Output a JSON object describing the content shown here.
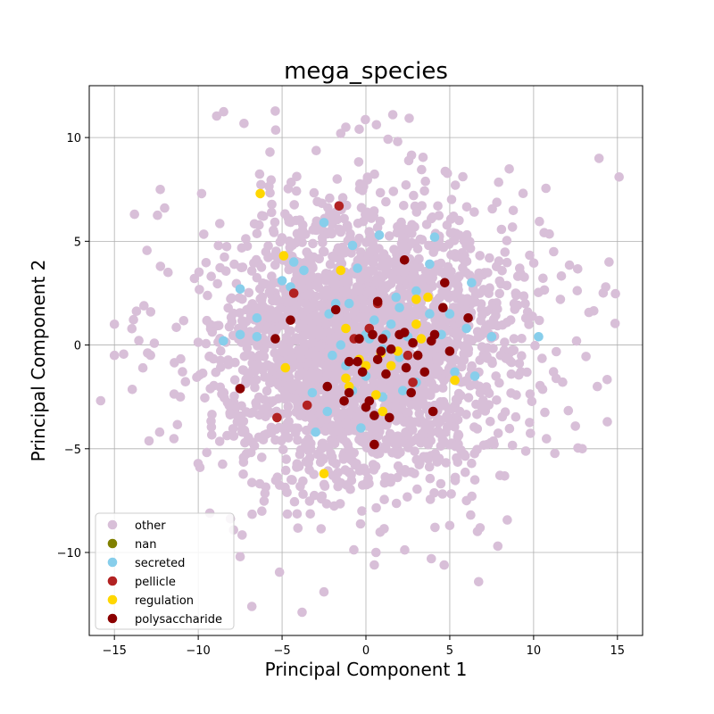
{
  "chart_data": {
    "type": "scatter",
    "title": "mega_species",
    "xlabel": "Principal Component 1",
    "ylabel": "Principal Component 2",
    "xlim": [
      -16.5,
      16.5
    ],
    "ylim": [
      -14,
      12.5
    ],
    "xticks": [
      -15,
      -10,
      -5,
      0,
      5,
      10,
      15
    ],
    "yticks": [
      -10,
      -5,
      0,
      5,
      10
    ],
    "grid": true,
    "legend_position": "lower-left",
    "series": [
      {
        "name": "other",
        "color": "#d8bfd8",
        "cloud": {
          "count": 2600,
          "center": [
            0,
            0
          ],
          "std": [
            4.4,
            3.4
          ],
          "seed": 7
        },
        "values": [
          [
            -15.0,
            1.0
          ],
          [
            -15.0,
            -0.5
          ],
          [
            -13.8,
            6.3
          ],
          [
            -12.3,
            -4.2
          ],
          [
            -12.0,
            6.6
          ],
          [
            -11.8,
            3.5
          ],
          [
            -9.9,
            -5.9
          ],
          [
            -7.5,
            -10.2
          ],
          [
            -6.8,
            -12.6
          ],
          [
            -2.5,
            -11.9
          ],
          [
            0.6,
            -10.0
          ],
          [
            0.5,
            -10.6
          ],
          [
            3.9,
            -10.3
          ],
          [
            1.6,
            11.1
          ],
          [
            -1.2,
            10.5
          ],
          [
            -0.4,
            10.4
          ],
          [
            -1.5,
            10.2
          ],
          [
            13.9,
            9.0
          ],
          [
            15.1,
            8.1
          ],
          [
            14.5,
            4.0
          ],
          [
            14.3,
            2.8
          ],
          [
            14.4,
            -3.7
          ],
          [
            12.9,
            -5.0
          ],
          [
            13.8,
            -2.0
          ],
          [
            11.6,
            2.2
          ],
          [
            11.2,
            4.5
          ],
          [
            5.0,
            -8.7
          ],
          [
            6.5,
            -6.5
          ],
          [
            6.0,
            -7.5
          ],
          [
            -9.8,
            7.3
          ]
        ]
      },
      {
        "name": "nan",
        "color": "#808000",
        "values": []
      },
      {
        "name": "secreted",
        "color": "#87ceeb",
        "values": [
          [
            -2.5,
            5.9
          ],
          [
            -5.0,
            3.1
          ],
          [
            -4.5,
            2.8
          ],
          [
            -3.7,
            3.6
          ],
          [
            -2.2,
            1.5
          ],
          [
            -1.0,
            2.0
          ],
          [
            0.5,
            1.2
          ],
          [
            1.2,
            0.5
          ],
          [
            2.0,
            1.8
          ],
          [
            3.0,
            2.6
          ],
          [
            3.8,
            3.9
          ],
          [
            4.1,
            5.2
          ],
          [
            0.8,
            5.3
          ],
          [
            -0.8,
            4.8
          ],
          [
            1.5,
            1.0
          ],
          [
            -1.5,
            0.0
          ],
          [
            -2.0,
            -0.5
          ],
          [
            0.0,
            -1.5
          ],
          [
            1.0,
            -2.5
          ],
          [
            2.0,
            -0.6
          ],
          [
            3.0,
            -1.8
          ],
          [
            4.5,
            0.5
          ],
          [
            5.0,
            1.5
          ],
          [
            6.0,
            0.8
          ],
          [
            6.5,
            -1.5
          ],
          [
            7.5,
            0.4
          ],
          [
            10.3,
            0.4
          ],
          [
            -7.5,
            2.7
          ],
          [
            -8.5,
            0.2
          ],
          [
            -6.5,
            1.3
          ],
          [
            -3.0,
            -4.2
          ],
          [
            -2.3,
            -3.2
          ],
          [
            -0.3,
            -4.0
          ],
          [
            1.0,
            -0.2
          ],
          [
            2.5,
            0.4
          ],
          [
            -1.2,
            -1.0
          ],
          [
            0.2,
            0.3
          ],
          [
            -0.5,
            3.7
          ],
          [
            6.3,
            3.0
          ],
          [
            5.3,
            -1.3
          ],
          [
            -3.2,
            -2.3
          ],
          [
            -4.3,
            4.0
          ],
          [
            -6.5,
            0.4
          ],
          [
            -7.5,
            0.5
          ],
          [
            3.8,
            1.5
          ],
          [
            1.8,
            2.3
          ],
          [
            -1.8,
            2.0
          ],
          [
            0.0,
            0.5
          ],
          [
            2.2,
            -2.2
          ],
          [
            -0.8,
            -2.2
          ]
        ]
      },
      {
        "name": "pellicle",
        "color": "#b22222",
        "values": [
          [
            -1.6,
            6.7
          ],
          [
            -4.3,
            2.5
          ],
          [
            -3.5,
            -2.9
          ],
          [
            -5.3,
            -3.5
          ],
          [
            0.7,
            2.0
          ],
          [
            0.5,
            -4.8
          ],
          [
            2.8,
            -1.8
          ],
          [
            0.2,
            0.8
          ],
          [
            -0.7,
            0.3
          ],
          [
            2.5,
            -0.5
          ]
        ]
      },
      {
        "name": "regulation",
        "color": "#ffd700",
        "values": [
          [
            -6.3,
            7.3
          ],
          [
            -4.9,
            4.3
          ],
          [
            -1.5,
            3.6
          ],
          [
            -4.8,
            -1.1
          ],
          [
            -2.5,
            -6.2
          ],
          [
            -1.2,
            -1.6
          ],
          [
            -1.0,
            -2.0
          ],
          [
            -1.2,
            0.8
          ],
          [
            0.6,
            -2.4
          ],
          [
            1.0,
            -3.2
          ],
          [
            3.0,
            2.2
          ],
          [
            3.3,
            0.3
          ],
          [
            5.3,
            -1.7
          ],
          [
            3.7,
            2.3
          ],
          [
            3.0,
            1.0
          ],
          [
            1.5,
            -1.0
          ],
          [
            0.9,
            -0.4
          ],
          [
            -0.4,
            -0.7
          ],
          [
            1.9,
            -0.3
          ],
          [
            0.0,
            -1.0
          ]
        ]
      },
      {
        "name": "polysaccharide",
        "color": "#8b0000",
        "values": [
          [
            -7.5,
            -2.1
          ],
          [
            -5.4,
            0.3
          ],
          [
            -4.5,
            1.2
          ],
          [
            -1.8,
            1.7
          ],
          [
            -2.3,
            -2.0
          ],
          [
            -1.3,
            -2.7
          ],
          [
            -1.0,
            -0.8
          ],
          [
            -0.5,
            -0.8
          ],
          [
            -0.4,
            0.3
          ],
          [
            -0.2,
            -1.3
          ],
          [
            0.0,
            -3.0
          ],
          [
            0.2,
            -2.7
          ],
          [
            0.5,
            -3.4
          ],
          [
            0.7,
            -0.7
          ],
          [
            0.9,
            -0.3
          ],
          [
            1.0,
            0.3
          ],
          [
            1.4,
            -3.5
          ],
          [
            1.5,
            -0.2
          ],
          [
            2.0,
            0.5
          ],
          [
            2.3,
            0.6
          ],
          [
            2.4,
            -1.1
          ],
          [
            2.7,
            -2.3
          ],
          [
            3.1,
            -0.5
          ],
          [
            3.9,
            0.2
          ],
          [
            4.0,
            -3.2
          ],
          [
            4.1,
            0.5
          ],
          [
            4.6,
            1.8
          ],
          [
            4.7,
            3.0
          ],
          [
            5.0,
            -0.3
          ],
          [
            6.1,
            1.3
          ],
          [
            2.3,
            4.1
          ],
          [
            0.4,
            0.5
          ],
          [
            1.2,
            -1.4
          ],
          [
            0.5,
            -4.8
          ],
          [
            -1.0,
            -2.3
          ],
          [
            3.5,
            -1.3
          ],
          [
            2.8,
            0.1
          ],
          [
            0.7,
            2.1
          ]
        ]
      }
    ]
  }
}
